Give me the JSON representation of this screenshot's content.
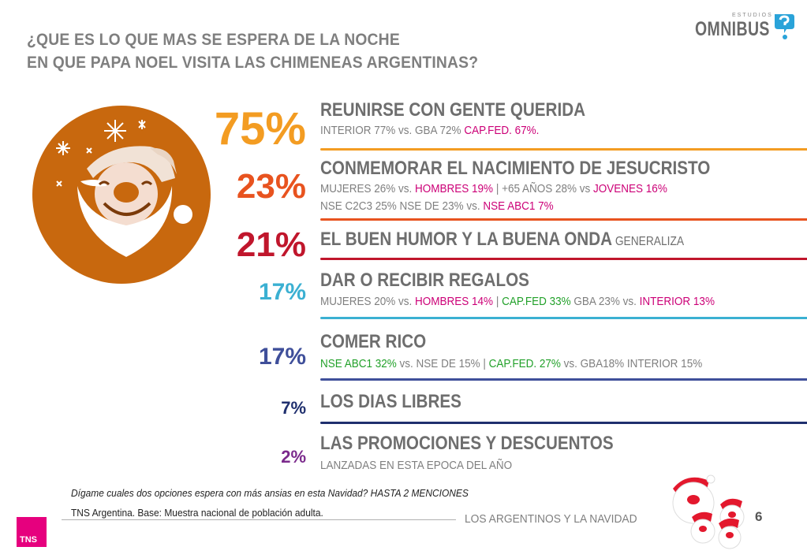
{
  "title": {
    "line1": "¿QUE ES LO QUE MAS SE ESPERA DE LA NOCHE",
    "line2": "EN QUE PAPA NOEL VISITA LAS CHIMENEAS ARGENTINAS?"
  },
  "logo": {
    "small": "ESTUDIOS",
    "big": "OMNIBUS"
  },
  "chart_data": {
    "type": "bar",
    "categories": [
      "REUNIRSE CON GENTE QUERIDA",
      "CONMEMORAR EL NACIMIENTO DE JESUCRISTO",
      "EL BUEN HUMOR Y LA BUENA ONDA",
      "DAR O RECIBIR REGALOS",
      "COMER RICO",
      "LOS DIAS LIBRES",
      "LAS PROMOCIONES Y DESCUENTOS"
    ],
    "values": [
      75,
      23,
      21,
      17,
      17,
      7,
      2
    ]
  },
  "items": [
    {
      "pct": "75%",
      "label": "REUNIRSE CON GENTE QUERIDA",
      "note": "",
      "color": "#f39c22",
      "subs": [
        [
          {
            "t": "INTERIOR 77% vs. GBA 72%  ",
            "c": "gray"
          },
          {
            "t": "CAP.FED. 67%.",
            "c": "magenta"
          }
        ]
      ]
    },
    {
      "pct": "23%",
      "label": "CONMEMORAR EL NACIMIENTO DE JESUCRISTO",
      "note": "",
      "color": "#e8531f",
      "subs": [
        [
          {
            "t": "MUJERES 26% vs. ",
            "c": "gray"
          },
          {
            "t": "HOMBRES 19%",
            "c": "magenta"
          },
          {
            "t": " | +65 AÑOS 28% vs ",
            "c": "gray"
          },
          {
            "t": "JOVENES 16%",
            "c": "magenta"
          }
        ],
        [
          {
            "t": "NSE C2C3 25% NSE DE 23% vs. ",
            "c": "gray"
          },
          {
            "t": "NSE ABC1 7%",
            "c": "magenta"
          }
        ]
      ]
    },
    {
      "pct": "21%",
      "label": "EL BUEN HUMOR Y LA BUENA ONDA",
      "note": " GENERALIZA",
      "color": "#c0162c",
      "subs": []
    },
    {
      "pct": "17%",
      "label": "DAR O RECIBIR REGALOS",
      "note": "",
      "color": "#3bb0d2",
      "subs": [
        [
          {
            "t": "MUJERES 20% vs. ",
            "c": "gray"
          },
          {
            "t": "HOMBRES 14%",
            "c": "magenta"
          },
          {
            "t": " | ",
            "c": "gray"
          },
          {
            "t": "CAP.FED 33%",
            "c": "green"
          },
          {
            "t": " GBA 23% vs. ",
            "c": "gray"
          },
          {
            "t": "INTERIOR 13%",
            "c": "magenta"
          }
        ]
      ]
    },
    {
      "pct": "17%",
      "label": "COMER RICO",
      "note": "",
      "color": "#3f4f9a",
      "subs": [
        [
          {
            "t": "NSE ABC1 32%",
            "c": "green"
          },
          {
            "t": " vs. NSE DE 15% | ",
            "c": "gray"
          },
          {
            "t": "CAP.FED. 27%",
            "c": "green"
          },
          {
            "t": " vs. GBA18% INTERIOR 15%",
            "c": "gray"
          }
        ]
      ]
    },
    {
      "pct": "7%",
      "label": "LOS DIAS LIBRES",
      "note": "",
      "color": "#1f2f6e",
      "subs": []
    },
    {
      "pct": "2%",
      "label": "LAS PROMOCIONES Y DESCUENTOS",
      "note": "",
      "color": "#7b2a8c",
      "subs": [
        [
          {
            "t": "LANZADAS EN ESTA EPOCA DEL AÑO",
            "c": "gray"
          }
        ]
      ]
    }
  ],
  "footer": {
    "question": "Dígame cuales dos opciones espera con más ansias en esta Navidad? HASTA 2 MENCIONES",
    "base": "TNS Argentina. Base: Muestra nacional de población adulta.",
    "section": "LOS ARGENTINOS Y LA NAVIDAD",
    "page": "6",
    "brand": "TNS"
  }
}
